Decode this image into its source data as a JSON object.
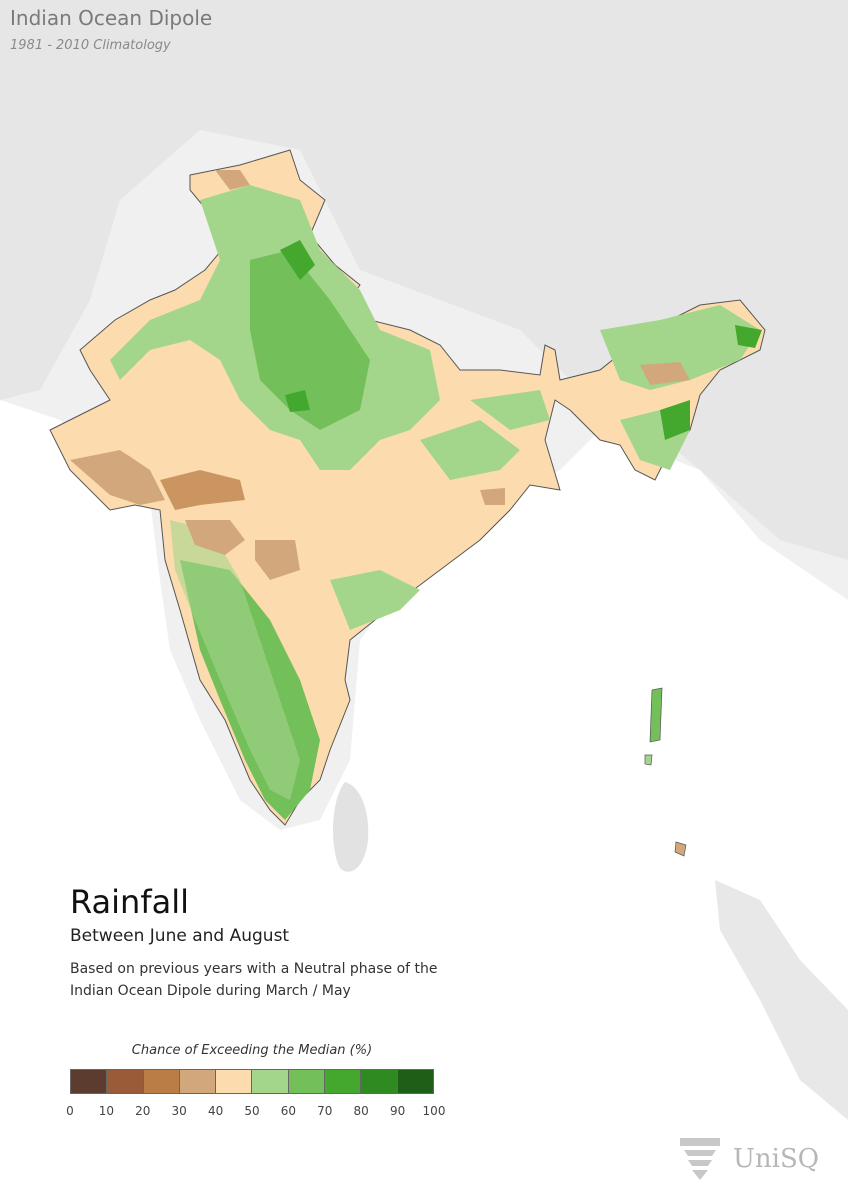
{
  "header": {
    "title": "Indian Ocean Dipole",
    "subtitle": "1981 - 2010 Climatology"
  },
  "main": {
    "heading": "Rainfall",
    "subheading": "Between June and August",
    "description": "Based on previous years with a Neutral phase of the Indian Ocean Dipole during March / May"
  },
  "legend": {
    "title": "Chance of Exceeding the Median (%)",
    "ticks": [
      "0",
      "10",
      "20",
      "30",
      "40",
      "50",
      "60",
      "70",
      "80",
      "90",
      "100"
    ],
    "colors": [
      "#5c3c2e",
      "#9a5c38",
      "#b97d45",
      "#d2a77c",
      "#fcdcae",
      "#a3d68b",
      "#73bf5a",
      "#45a82e",
      "#2f8a22",
      "#1f5e16"
    ]
  },
  "branding": {
    "logo_text": "UniSQ"
  }
}
